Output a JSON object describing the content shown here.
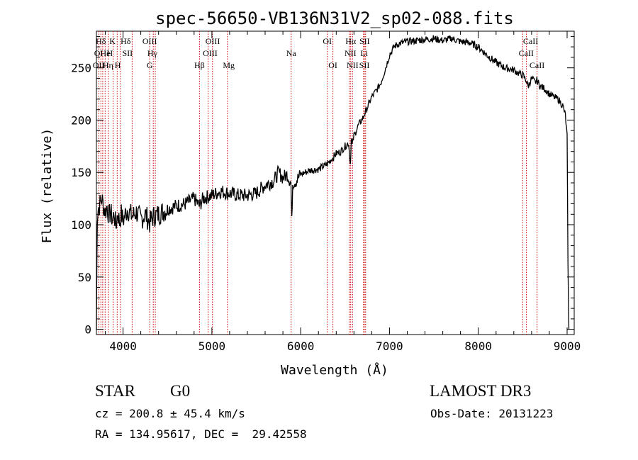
{
  "chart_data": {
    "type": "line",
    "title": "spec-56650-VB136N31V2_sp02-088.fits",
    "xlabel": "Wavelength (Å)",
    "ylabel": "Flux (relative)",
    "xlim": [
      3700,
      9080
    ],
    "ylim": [
      -5,
      285
    ],
    "xticks": [
      4000,
      5000,
      6000,
      7000,
      8000,
      9000
    ],
    "yticks": [
      0,
      50,
      100,
      150,
      200,
      250
    ],
    "grid": false,
    "series": [
      {
        "name": "flux",
        "color": "#000000",
        "x": [
          3700,
          3705,
          3710,
          3720,
          3740,
          3760,
          3780,
          3800,
          3820,
          3840,
          3860,
          3880,
          3900,
          3920,
          3940,
          3960,
          3980,
          4000,
          4050,
          4100,
          4150,
          4200,
          4250,
          4300,
          4340,
          4400,
          4500,
          4600,
          4700,
          4800,
          4860,
          4900,
          5000,
          5100,
          5200,
          5300,
          5400,
          5500,
          5600,
          5700,
          5750,
          5800,
          5850,
          5890,
          5900,
          5910,
          5950,
          6000,
          6050,
          6100,
          6200,
          6300,
          6400,
          6450,
          6500,
          6540,
          6560,
          6570,
          6580,
          6600,
          6650,
          6700,
          6750,
          6800,
          6850,
          6900,
          6950,
          7000,
          7050,
          7100,
          7200,
          7300,
          7400,
          7500,
          7600,
          7700,
          7800,
          7900,
          8000,
          8100,
          8200,
          8300,
          8400,
          8450,
          8500,
          8540,
          8560,
          8600,
          8640,
          8660,
          8700,
          8750,
          8800,
          8850,
          8900,
          8950,
          8980,
          9000,
          9010,
          9020
        ],
        "values": [
          0,
          60,
          110,
          115,
          120,
          125,
          118,
          112,
          118,
          108,
          112,
          105,
          110,
          98,
          112,
          102,
          110,
          104,
          115,
          108,
          112,
          105,
          110,
          102,
          108,
          110,
          115,
          118,
          120,
          125,
          118,
          125,
          128,
          132,
          130,
          128,
          128,
          130,
          138,
          142,
          150,
          145,
          148,
          140,
          102,
          140,
          142,
          148,
          150,
          152,
          153,
          158,
          168,
          170,
          175,
          178,
          158,
          182,
          176,
          185,
          195,
          202,
          212,
          222,
          228,
          235,
          248,
          262,
          270,
          273,
          275,
          276,
          277,
          278,
          276,
          278,
          275,
          274,
          270,
          262,
          255,
          250,
          248,
          245,
          243,
          238,
          232,
          240,
          236,
          238,
          232,
          230,
          225,
          222,
          220,
          214,
          205,
          185,
          60,
          0
        ]
      }
    ],
    "line_labels": [
      {
        "label": "Hδ",
        "wavelength": 3750,
        "row": 0,
        "color": "#000000"
      },
      {
        "label": "K",
        "wavelength": 3880,
        "row": 0,
        "color": "#000000"
      },
      {
        "label": "Hδ",
        "wavelength": 4030,
        "row": 0,
        "color": "#000000"
      },
      {
        "label": "OIII",
        "wavelength": 4300,
        "row": 0,
        "color": "#000000"
      },
      {
        "label": "OIII",
        "wavelength": 5010,
        "row": 0,
        "color": "#000000"
      },
      {
        "label": "OI",
        "wavelength": 6300,
        "row": 0,
        "color": "#000000"
      },
      {
        "label": "Hα",
        "wavelength": 6563,
        "row": 0,
        "color": "#000000"
      },
      {
        "label": "SII",
        "wavelength": 6720,
        "row": 0,
        "color": "#000000"
      },
      {
        "label": "CaII",
        "wavelength": 8590,
        "row": 0,
        "color": "#000000"
      },
      {
        "label": "OI",
        "wavelength": 3725,
        "row": 1,
        "color": "#000000"
      },
      {
        "label": "He",
        "wavelength": 3800,
        "row": 1,
        "color": "#000000"
      },
      {
        "label": "H",
        "wavelength": 3850,
        "row": 1,
        "color": "#000000"
      },
      {
        "label": "SII",
        "wavelength": 4050,
        "row": 1,
        "color": "#000000"
      },
      {
        "label": "Hγ",
        "wavelength": 4330,
        "row": 1,
        "color": "#000000"
      },
      {
        "label": "OIII",
        "wavelength": 4980,
        "row": 1,
        "color": "#000000"
      },
      {
        "label": "Na",
        "wavelength": 5893,
        "row": 1,
        "color": "#000000"
      },
      {
        "label": "NII",
        "wavelength": 6560,
        "row": 1,
        "color": "#000000"
      },
      {
        "label": "Li",
        "wavelength": 6715,
        "row": 1,
        "color": "#000000"
      },
      {
        "label": "CaII",
        "wavelength": 8540,
        "row": 1,
        "color": "#000000"
      },
      {
        "label": "OII",
        "wavelength": 3725,
        "row": 2,
        "color": "#000000"
      },
      {
        "label": "Hη",
        "wavelength": 3830,
        "row": 2,
        "color": "#000000"
      },
      {
        "label": "H",
        "wavelength": 3940,
        "row": 2,
        "color": "#000000"
      },
      {
        "label": "G",
        "wavelength": 4300,
        "row": 2,
        "color": "#000000"
      },
      {
        "label": "Hβ",
        "wavelength": 4861,
        "row": 2,
        "color": "#000000"
      },
      {
        "label": "Mg",
        "wavelength": 5190,
        "row": 2,
        "color": "#000000"
      },
      {
        "label": "OI",
        "wavelength": 6363,
        "row": 2,
        "color": "#000000"
      },
      {
        "label": "NII",
        "wavelength": 6584,
        "row": 2,
        "color": "#000000"
      },
      {
        "label": "SII",
        "wavelength": 6717,
        "row": 2,
        "color": "#000000"
      },
      {
        "label": "CaII",
        "wavelength": 8662,
        "row": 2,
        "color": "#000000"
      }
    ],
    "line_markers": [
      3727,
      3750,
      3771,
      3798,
      3835,
      3889,
      3934,
      3970,
      4102,
      4300,
      4340,
      4363,
      4861,
      4959,
      5007,
      5175,
      5893,
      6300,
      6363,
      6548,
      6563,
      6584,
      6708,
      6717,
      6731,
      8498,
      8542,
      8662
    ],
    "marker_color": "#cc0000"
  },
  "captions": {
    "object_class": "STAR",
    "subclass": "G0",
    "survey": "LAMOST DR3",
    "redshift": "cz = 200.8 ± 45.4 km/s",
    "obs_date": "Obs-Date: 20131223",
    "coordinates": "RA = 134.95617, DEC =  29.42558"
  }
}
